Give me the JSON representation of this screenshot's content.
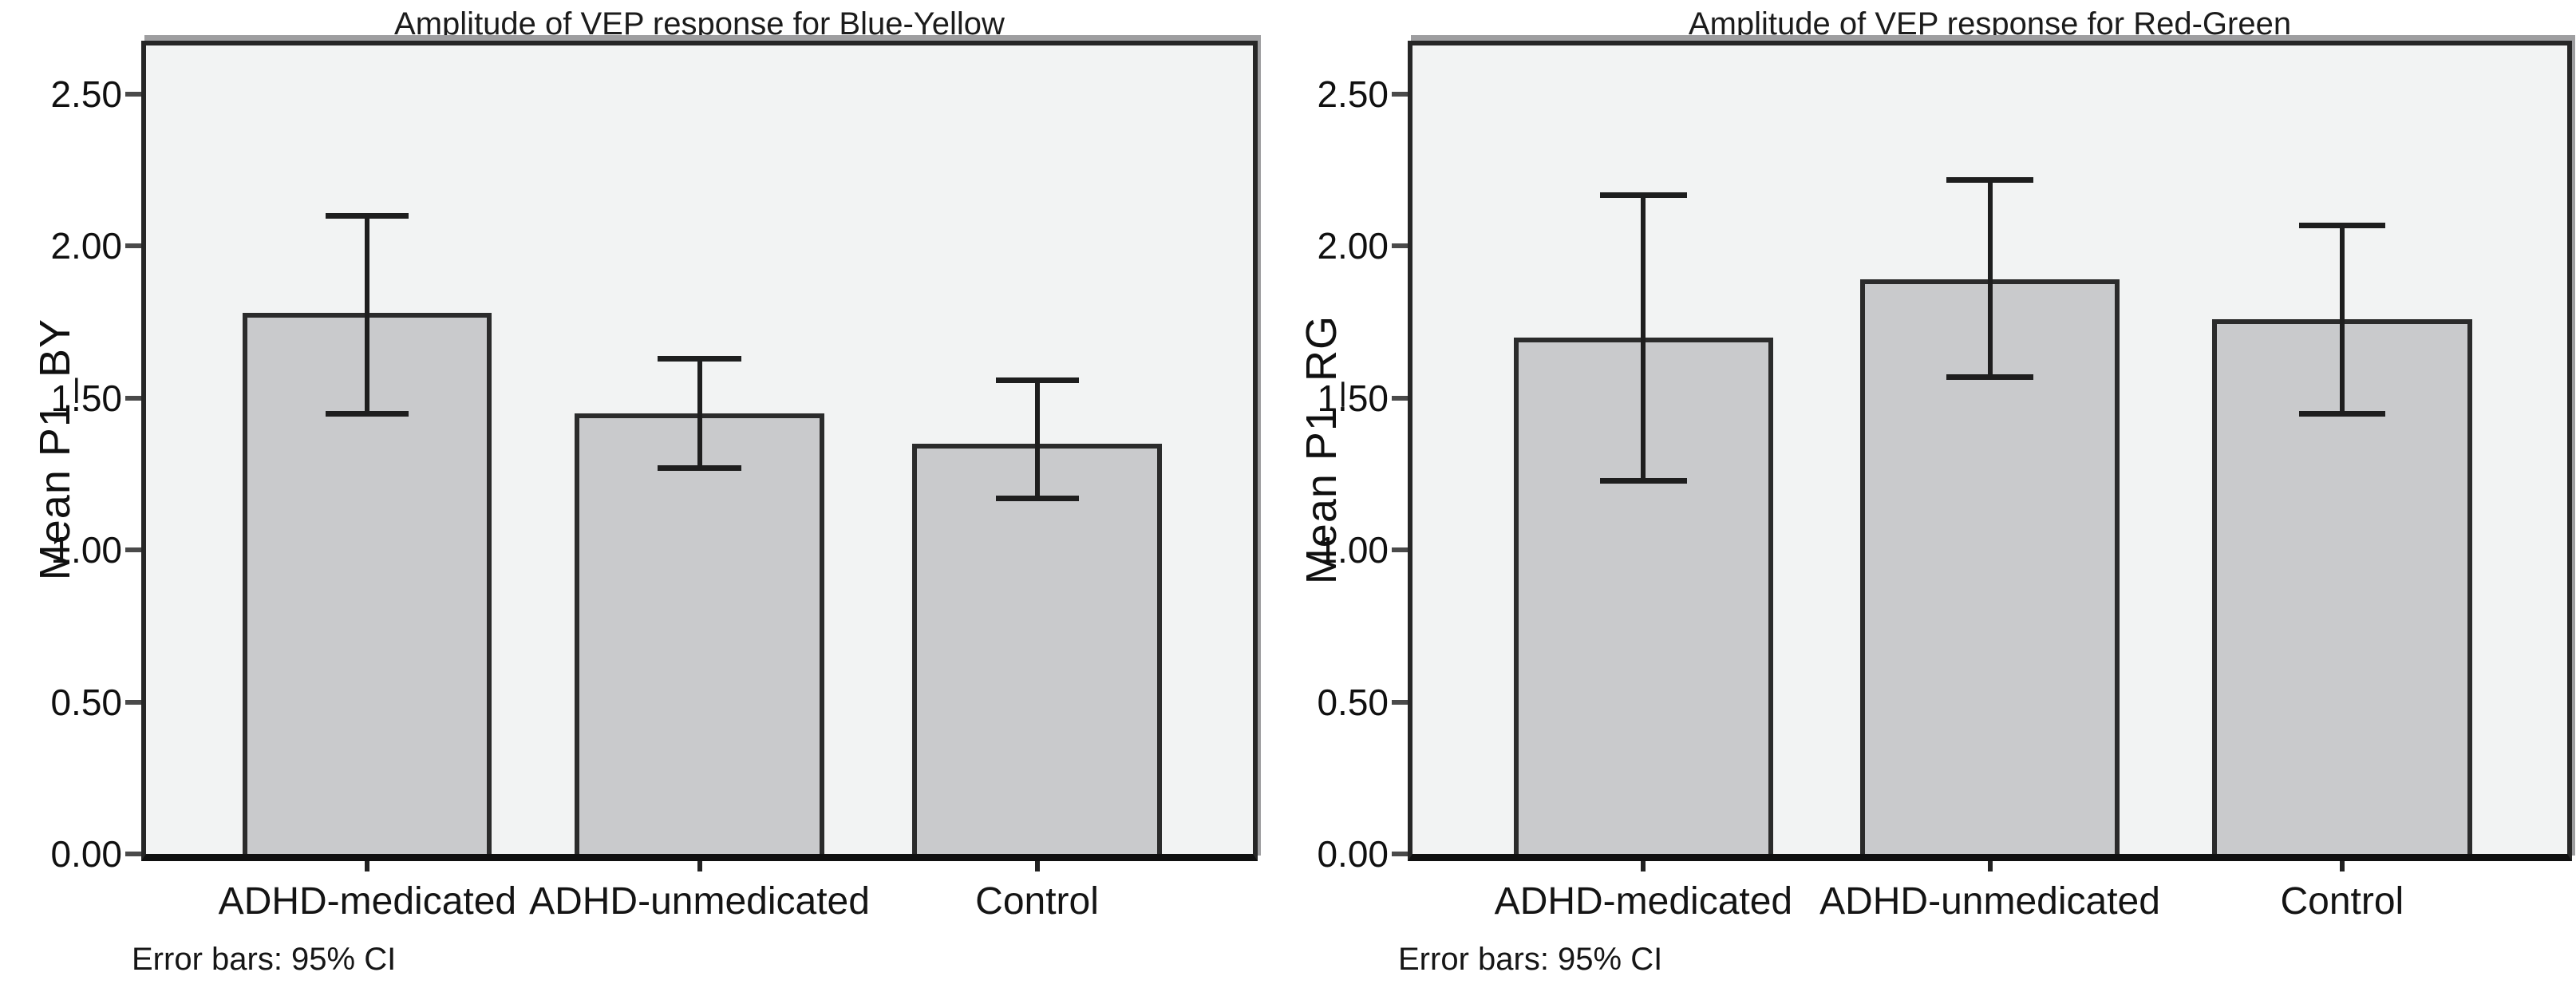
{
  "figure": {
    "background": "#ffffff",
    "text_color": "#151515"
  },
  "chart_data": [
    {
      "type": "bar",
      "title": "Amplitude of VEP response for Blue-Yellow",
      "ylabel": "Mean P1_BY",
      "xlabel": "",
      "categories": [
        "ADHD-medicated",
        "ADHD-unmedicated",
        "Control"
      ],
      "values": [
        1.78,
        1.45,
        1.35
      ],
      "error_low": [
        1.45,
        1.27,
        1.17
      ],
      "error_high": [
        2.1,
        1.63,
        1.56
      ],
      "error_note": "Error bars: 95% CI",
      "ytick_labels": [
        "0.00",
        "0.50",
        "1.00",
        "1.50",
        "2.00",
        "2.50"
      ],
      "ytick_values": [
        0,
        0.5,
        1.0,
        1.5,
        2.0,
        2.5
      ],
      "ylim": [
        0,
        2.66
      ],
      "grid": false,
      "legend": "none",
      "plot_bg": "#f2f3f3",
      "bar_fill": "#c9cacc",
      "bar_border": "#2b2b2b",
      "error_bar_color": "#1e1e1e"
    },
    {
      "type": "bar",
      "title": "Amplitude of VEP response for Red-Green",
      "ylabel": "Mean P1_RG",
      "xlabel": "",
      "categories": [
        "ADHD-medicated",
        "ADHD-unmedicated",
        "Control"
      ],
      "values": [
        1.7,
        1.89,
        1.76
      ],
      "error_low": [
        1.23,
        1.57,
        1.45
      ],
      "error_high": [
        2.17,
        2.22,
        2.07
      ],
      "error_note": "Error bars: 95% CI",
      "ytick_labels": [
        "0.00",
        "0.50",
        "1.00",
        "1.50",
        "2.00",
        "2.50"
      ],
      "ytick_values": [
        0,
        0.5,
        1.0,
        1.5,
        2.0,
        2.5
      ],
      "ylim": [
        0,
        2.66
      ],
      "grid": false,
      "legend": "none",
      "plot_bg": "#f2f3f3",
      "bar_fill": "#c9cacc",
      "bar_border": "#2b2b2b",
      "error_bar_color": "#1e1e1e"
    }
  ]
}
